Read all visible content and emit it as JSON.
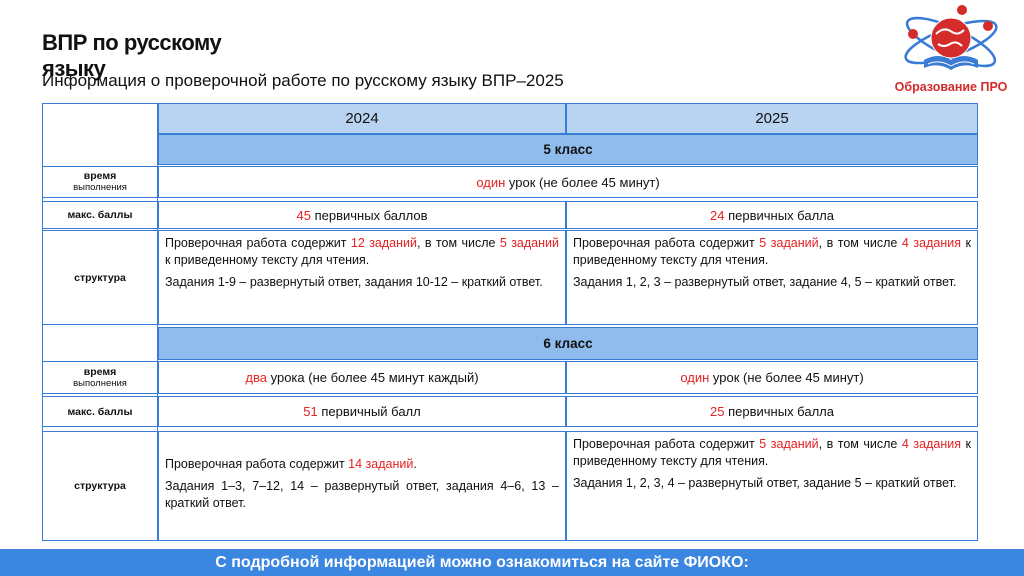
{
  "header": {
    "title": "ВПР по русскому языку",
    "subtitle": "Информация о проверочной работе по русскому языку ВПР–2025"
  },
  "logo": {
    "text": "Образование ПРО"
  },
  "table": {
    "years": [
      "2024",
      "2025"
    ],
    "grade5": {
      "label": "5 класс",
      "time_label_1": "время",
      "time_label_2": "выполнения",
      "time_red": "один",
      "time_rest": " урок (не более 45 минут)",
      "score_label": "макс. баллы",
      "score_2024_num": "45",
      "score_2024_rest": " первичных баллов",
      "score_2025_num": "24",
      "score_2025_rest": " первичных балла",
      "struct_label": "структура",
      "struct_2024_a1": "Проверочная работа содержит ",
      "struct_2024_a2": "12 заданий",
      "struct_2024_a3": ", в том числе ",
      "struct_2024_a4": "5 заданий",
      "struct_2024_a5": " к приведенному тексту для чтения.",
      "struct_2024_b": "Задания 1-9 – развернутый ответ, задания 10-12 – краткий ответ.",
      "struct_2025_a1": "Проверочная работа содержит ",
      "struct_2025_a2": "5 заданий",
      "struct_2025_a3": ", в том числе ",
      "struct_2025_a4": "4 задания",
      "struct_2025_a5": " к приведенному тексту для чтения.",
      "struct_2025_b": "Задания 1, 2, 3 – развернутый ответ, задание 4, 5 – краткий ответ."
    },
    "grade6": {
      "label": "6 класс",
      "time_label_1": "время",
      "time_label_2": "выполнения",
      "time_2024_red": "два",
      "time_2024_rest": " урока (не более 45 минут каждый)",
      "time_2025_red": "один",
      "time_2025_rest": " урок (не более 45 минут)",
      "score_label": "макс. баллы",
      "score_2024_num": "51",
      "score_2024_rest": " первичный балл",
      "score_2025_num": "25",
      "score_2025_rest": " первичных балла",
      "struct_label": "структура",
      "struct_2024_a1": "Проверочная работа содержит ",
      "struct_2024_a2": "14 заданий",
      "struct_2024_a3": ".",
      "struct_2024_b": "Задания 1–3, 7–12, 14 – развернутый ответ, задания 4–6, 13 – краткий ответ.",
      "struct_2025_a1": "Проверочная работа содержит ",
      "struct_2025_a2": "5 заданий",
      "struct_2025_a3": ", в том числе ",
      "struct_2025_a4": "4 задания",
      "struct_2025_a5": " к приведенному тексту для чтения.",
      "struct_2025_b": "Задания 1, 2, 3, 4 – развернутый ответ, задание 5 – краткий ответ."
    }
  },
  "footer": {
    "text": "С подробной информацией можно ознакомиться на сайте ФИОКО:"
  },
  "colors": {
    "accent": "#3a7bd5",
    "header_fill": "#b8d4f0",
    "class_fill": "#8fbcec",
    "highlight": "#e52222",
    "footer": "#3a86e0"
  }
}
